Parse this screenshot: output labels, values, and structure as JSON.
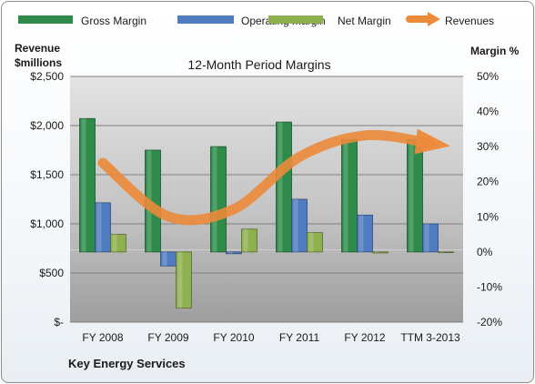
{
  "chart_data": {
    "type": "bar",
    "title": "12-Month Period Margins",
    "left_axis_label_line1": "Revenue",
    "left_axis_label_line2": "$millions",
    "right_axis_label": "Margin %",
    "categories": [
      "FY 2008",
      "FY 2009",
      "FY 2010",
      "FY 2011",
      "FY 2012",
      "TTM 3-2013"
    ],
    "series": [
      {
        "name": "Gross Margin",
        "axis": "right",
        "color": "#2e8b4a",
        "values": [
          38,
          29,
          30,
          37,
          32,
          32
        ]
      },
      {
        "name": "Operating Margin",
        "axis": "right",
        "color": "#4f7cc0",
        "values": [
          14,
          -4,
          -0.5,
          15,
          10.5,
          8
        ]
      },
      {
        "name": "Net Margin",
        "axis": "right",
        "color": "#8fb04f",
        "values": [
          5,
          -16,
          6.5,
          5.5,
          -0.3,
          0
        ]
      },
      {
        "name": "Revenues",
        "axis": "left",
        "color": "#ec8a3a",
        "kind": "line",
        "values": [
          1620,
          1075,
          1150,
          1680,
          1900,
          1820
        ]
      }
    ],
    "left_axis": {
      "min": 0,
      "max": 2500,
      "ticks": [
        "$-",
        "$500",
        "$1,000",
        "$1,500",
        "$2,000",
        "$2,500"
      ]
    },
    "right_axis": {
      "min": -20,
      "max": 50,
      "ticks": [
        "-20%",
        "-10%",
        "0%",
        "10%",
        "20%",
        "30%",
        "40%",
        "50%"
      ]
    },
    "grid": true,
    "legend": "top"
  },
  "footer": {
    "company": "Key Energy Services"
  }
}
